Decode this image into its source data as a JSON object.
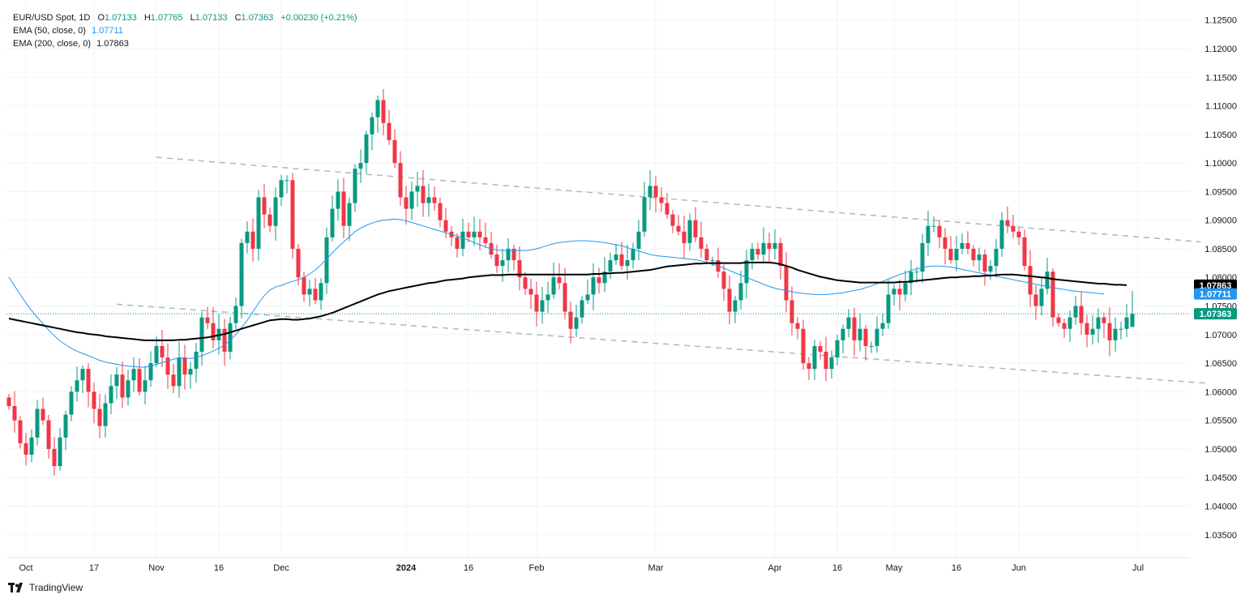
{
  "legend": {
    "symbol": "EUR/USD Spot, 1D",
    "open_label": "O",
    "open": "1.07133",
    "high_label": "H",
    "high": "1.07765",
    "low_label": "L",
    "low": "1.07133",
    "close_label": "C",
    "close": "1.07363",
    "change": "+0.00230 (+0.21%)",
    "ema50_label": "EMA (50, close, 0)",
    "ema50_value": "1.07711",
    "ema200_label": "EMA (200, close, 0)",
    "ema200_value": "1.07863"
  },
  "price_badges": {
    "ema200": "1.07863",
    "ema50": "1.07711",
    "last": "1.07363"
  },
  "branding": {
    "name": "TradingView"
  },
  "colors": {
    "up": "#089981",
    "down": "#f23645",
    "ema50": "#2196f3",
    "ema200": "#000000",
    "trend": "#b2b5be",
    "grid": "#f0f3fa",
    "text": "#131722"
  },
  "chart_data": {
    "type": "candlestick",
    "title": "EUR/USD Spot, 1D",
    "y_axis": {
      "ticks": [
        "1.12500",
        "1.12000",
        "1.11500",
        "1.11000",
        "1.10500",
        "1.10000",
        "1.09500",
        "1.09000",
        "1.08500",
        "1.08000",
        "1.07500",
        "1.07000",
        "1.06500",
        "1.06000",
        "1.05500",
        "1.05000",
        "1.04500",
        "1.04000",
        "1.03500"
      ],
      "range": [
        1.031,
        1.1285
      ]
    },
    "x_axis": {
      "labels": [
        {
          "text": "Oct",
          "idx": 3
        },
        {
          "text": "17",
          "idx": 15
        },
        {
          "text": "Nov",
          "idx": 26
        },
        {
          "text": "16",
          "idx": 37
        },
        {
          "text": "Dec",
          "idx": 48
        },
        {
          "text": "2024",
          "idx": 70
        },
        {
          "text": "16",
          "idx": 81
        },
        {
          "text": "Feb",
          "idx": 93
        },
        {
          "text": "Mar",
          "idx": 114
        },
        {
          "text": "Apr",
          "idx": 135
        },
        {
          "text": "16",
          "idx": 146
        },
        {
          "text": "May",
          "idx": 156
        },
        {
          "text": "16",
          "idx": 167
        },
        {
          "text": "Jun",
          "idx": 178
        },
        {
          "text": "Jul",
          "idx": 199
        }
      ]
    },
    "close_path": [
      1.0575,
      1.055,
      1.051,
      1.049,
      1.052,
      1.057,
      1.055,
      1.05,
      1.047,
      1.052,
      1.056,
      1.06,
      1.062,
      1.064,
      1.06,
      1.057,
      1.054,
      1.058,
      1.061,
      1.063,
      1.059,
      1.062,
      1.064,
      1.06,
      1.062,
      1.065,
      1.068,
      1.066,
      1.063,
      1.061,
      1.066,
      1.063,
      1.064,
      1.067,
      1.073,
      1.072,
      1.069,
      1.071,
      1.067,
      1.072,
      1.075,
      1.086,
      1.088,
      1.085,
      1.094,
      1.091,
      1.089,
      1.094,
      1.097,
      1.097,
      1.085,
      1.08,
      1.077,
      1.078,
      1.076,
      1.079,
      1.087,
      1.092,
      1.095,
      1.089,
      1.093,
      1.099,
      1.1,
      1.105,
      1.108,
      1.111,
      1.107,
      1.104,
      1.1,
      1.094,
      1.092,
      1.095,
      1.096,
      1.093,
      1.094,
      1.093,
      1.09,
      1.088,
      1.087,
      1.085,
      1.088,
      1.087,
      1.088,
      1.087,
      1.086,
      1.084,
      1.082,
      1.083,
      1.085,
      1.083,
      1.08,
      1.078,
      1.077,
      1.074,
      1.076,
      1.077,
      1.08,
      1.079,
      1.074,
      1.071,
      1.073,
      1.076,
      1.077,
      1.08,
      1.079,
      1.081,
      1.083,
      1.084,
      1.082,
      1.083,
      1.085,
      1.088,
      1.094,
      1.096,
      1.094,
      1.093,
      1.091,
      1.089,
      1.088,
      1.086,
      1.09,
      1.087,
      1.085,
      1.083,
      1.083,
      1.081,
      1.078,
      1.074,
      1.076,
      1.079,
      1.083,
      1.085,
      1.084,
      1.086,
      1.085,
      1.086,
      1.082,
      1.076,
      1.072,
      1.071,
      1.065,
      1.064,
      1.068,
      1.067,
      1.064,
      1.066,
      1.069,
      1.071,
      1.073,
      1.069,
      1.071,
      1.068,
      1.068,
      1.071,
      1.072,
      1.077,
      1.078,
      1.077,
      1.079,
      1.081,
      1.081,
      1.086,
      1.089,
      1.089,
      1.087,
      1.085,
      1.083,
      1.085,
      1.086,
      1.085,
      1.083,
      1.084,
      1.081,
      1.082,
      1.085,
      1.09,
      1.089,
      1.088,
      1.087,
      1.082,
      1.077,
      1.075,
      1.078,
      1.081,
      1.073,
      1.072,
      1.071,
      1.073,
      1.075,
      1.072,
      1.07,
      1.071,
      1.073,
      1.072,
      1.069,
      1.071,
      1.071,
      1.073,
      1.07363
    ],
    "last_candle": {
      "open": 1.07133,
      "high": 1.07765,
      "low": 1.07133,
      "close": 1.07363
    },
    "series": [
      {
        "name": "EMA (50, close, 0)",
        "value": 1.07711,
        "color": "#2196f3"
      },
      {
        "name": "EMA (200, close, 0)",
        "value": 1.07863,
        "color": "#000000"
      }
    ],
    "ema200_path": [
      1.0728,
      1.0726,
      1.0724,
      1.0722,
      1.072,
      1.0718,
      1.0716,
      1.0714,
      1.0712,
      1.071,
      1.0708,
      1.0706,
      1.0704,
      1.0703,
      1.0701,
      1.07,
      1.0699,
      1.0697,
      1.0696,
      1.0695,
      1.0694,
      1.0693,
      1.0692,
      1.0691,
      1.069,
      1.069,
      1.069,
      1.069,
      1.069,
      1.069,
      1.0691,
      1.0691,
      1.0692,
      1.0693,
      1.0694,
      1.0695,
      1.0697,
      1.0699,
      1.0701,
      1.0704,
      1.0707,
      1.071,
      1.0713,
      1.0716,
      1.0719,
      1.0722,
      1.0725,
      1.0726,
      1.0727,
      1.0727,
      1.0726,
      1.0726,
      1.0727,
      1.0728,
      1.073,
      1.0732,
      1.0735,
      1.0738,
      1.0742,
      1.0746,
      1.075,
      1.0754,
      1.0758,
      1.0762,
      1.0766,
      1.077,
      1.0773,
      1.0776,
      1.0778,
      1.078,
      1.0782,
      1.0784,
      1.0786,
      1.0788,
      1.079,
      1.0791,
      1.0793,
      1.0795,
      1.0796,
      1.0797,
      1.0798,
      1.08,
      1.0801,
      1.0802,
      1.0803,
      1.0804,
      1.0804,
      1.0804,
      1.0805,
      1.0805,
      1.0805,
      1.0805,
      1.0805,
      1.0805,
      1.0805,
      1.0805,
      1.0805,
      1.0805,
      1.0805,
      1.0805,
      1.0805,
      1.0805,
      1.0805,
      1.0806,
      1.0806,
      1.0807,
      1.0807,
      1.0808,
      1.0808,
      1.0809,
      1.081,
      1.0811,
      1.0812,
      1.0813,
      1.0815,
      1.0817,
      1.0819,
      1.082,
      1.0821,
      1.0822,
      1.0823,
      1.0824,
      1.0824,
      1.0825,
      1.0825,
      1.0825,
      1.0825,
      1.0825,
      1.0825,
      1.0825,
      1.0826,
      1.0826,
      1.0826,
      1.0826,
      1.0826,
      1.0825,
      1.0823,
      1.082,
      1.0817,
      1.0813,
      1.081,
      1.0807,
      1.0804,
      1.0801,
      1.0799,
      1.0797,
      1.0795,
      1.0794,
      1.0793,
      1.0792,
      1.0791,
      1.0791,
      1.0791,
      1.0791,
      1.0791,
      1.0791,
      1.0791,
      1.0792,
      1.0792,
      1.0793,
      1.0794,
      1.0795,
      1.0796,
      1.0797,
      1.0798,
      1.0799,
      1.08,
      1.08,
      1.0801,
      1.0801,
      1.0802,
      1.0802,
      1.0803,
      1.0803,
      1.0804,
      1.0805,
      1.0805,
      1.0805,
      1.0804,
      1.0803,
      1.0802,
      1.0801,
      1.08,
      1.0799,
      1.0797,
      1.0796,
      1.0795,
      1.0794,
      1.0793,
      1.0792,
      1.0791,
      1.079,
      1.0789,
      1.0789,
      1.0788,
      1.0787,
      1.0787,
      1.07863
    ],
    "ema50_path": [
      1.08,
      1.0785,
      1.077,
      1.0755,
      1.0742,
      1.073,
      1.0719,
      1.0708,
      1.0698,
      1.0689,
      1.0682,
      1.0676,
      1.0671,
      1.0667,
      1.0663,
      1.0659,
      1.0655,
      1.0652,
      1.065,
      1.0648,
      1.0646,
      1.0645,
      1.0644,
      1.0643,
      1.0643,
      1.0645,
      1.0648,
      1.0651,
      1.0654,
      1.0657,
      1.0659,
      1.0659,
      1.0658,
      1.066,
      1.0663,
      1.0667,
      1.0671,
      1.0676,
      1.0682,
      1.069,
      1.07,
      1.0712,
      1.0725,
      1.074,
      1.0755,
      1.0768,
      1.0778,
      1.0783,
      1.0786,
      1.079,
      1.0793,
      1.0796,
      1.08,
      1.0806,
      1.0813,
      1.0822,
      1.0832,
      1.0843,
      1.0853,
      1.0862,
      1.0871,
      1.088,
      1.0886,
      1.0891,
      1.0895,
      1.0898,
      1.09,
      1.0901,
      1.0902,
      1.0901,
      1.0899,
      1.0896,
      1.0893,
      1.089,
      1.0887,
      1.0884,
      1.0881,
      1.0878,
      1.0875,
      1.0872,
      1.0869,
      1.0865,
      1.0861,
      1.0857,
      1.0853,
      1.085,
      1.0848,
      1.0847,
      1.0847,
      1.0847,
      1.0847,
      1.0847,
      1.0848,
      1.085,
      1.0853,
      1.0856,
      1.0859,
      1.0861,
      1.0862,
      1.0863,
      1.0864,
      1.0864,
      1.0864,
      1.0863,
      1.0862,
      1.0861,
      1.0859,
      1.0857,
      1.0855,
      1.0852,
      1.0849,
      1.0846,
      1.0843,
      1.084,
      1.0838,
      1.0837,
      1.0836,
      1.0835,
      1.0834,
      1.0833,
      1.0832,
      1.0831,
      1.0829,
      1.0826,
      1.0823,
      1.082,
      1.0816,
      1.0812,
      1.0808,
      1.0804,
      1.08,
      1.0796,
      1.0792,
      1.0788,
      1.0784,
      1.0781,
      1.0779,
      1.0777,
      1.0775,
      1.0773,
      1.0772,
      1.0771,
      1.077,
      1.077,
      1.077,
      1.0771,
      1.0772,
      1.0773,
      1.0775,
      1.0777,
      1.0779,
      1.0782,
      1.0785,
      1.0789,
      1.0793,
      1.0797,
      1.0801,
      1.0805,
      1.0808,
      1.0812,
      1.0815,
      1.0817,
      1.0819,
      1.082,
      1.082,
      1.0819,
      1.0818,
      1.0816,
      1.0814,
      1.0812,
      1.081,
      1.0808,
      1.0806,
      1.0804,
      1.0802,
      1.08,
      1.0798,
      1.0796,
      1.0794,
      1.0792,
      1.079,
      1.0788,
      1.0786,
      1.0784,
      1.0782,
      1.078,
      1.0779,
      1.0777,
      1.0776,
      1.0775,
      1.0774,
      1.0773,
      1.0772,
      1.07711
    ],
    "trendlines": [
      {
        "name": "upper-channel",
        "from": {
          "idx": 26,
          "y": 1.101
        },
        "to": {
          "idx": 210,
          "y": 1.0862
        }
      },
      {
        "name": "lower-channel",
        "from": {
          "idx": 19,
          "y": 1.0753
        },
        "to": {
          "idx": 211,
          "y": 1.0615
        }
      }
    ]
  }
}
